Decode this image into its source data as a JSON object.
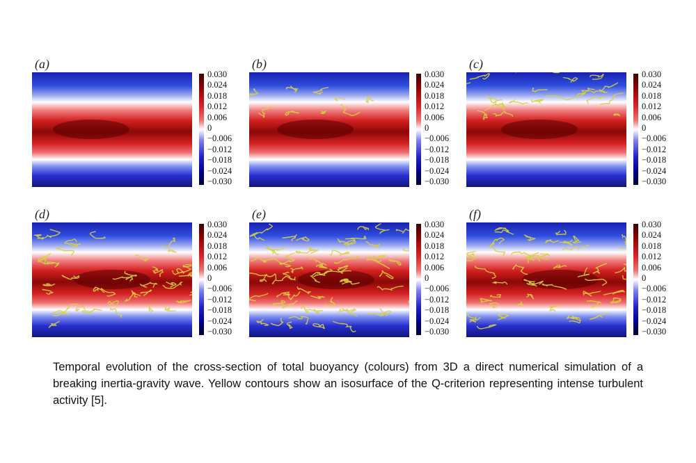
{
  "panels": [
    {
      "label": "(a)",
      "turbulence": 0.0
    },
    {
      "label": "(b)",
      "turbulence": 0.15
    },
    {
      "label": "(c)",
      "turbulence": 0.35
    },
    {
      "label": "(d)",
      "turbulence": 0.7
    },
    {
      "label": "(e)",
      "turbulence": 1.0
    },
    {
      "label": "(f)",
      "turbulence": 0.8
    }
  ],
  "colorbar_ticks": [
    "0.030",
    "0.024",
    "0.018",
    "0.012",
    "0.006",
    "0",
    "−0.006",
    "−0.012",
    "−0.018",
    "−0.024",
    "−0.030"
  ],
  "colors": {
    "positive": "#c81818",
    "negative": "#1a1ac8",
    "zero": "#ffffff",
    "contour": "#d8d040"
  },
  "caption": "Temporal evolution of the cross-section of total buoyancy (colours) from 3D a direct numerical simulation of a breaking inertia-gravity wave.  Yellow contours show an isosurface of the Q-criterion representing intense turbulent activity [5]."
}
